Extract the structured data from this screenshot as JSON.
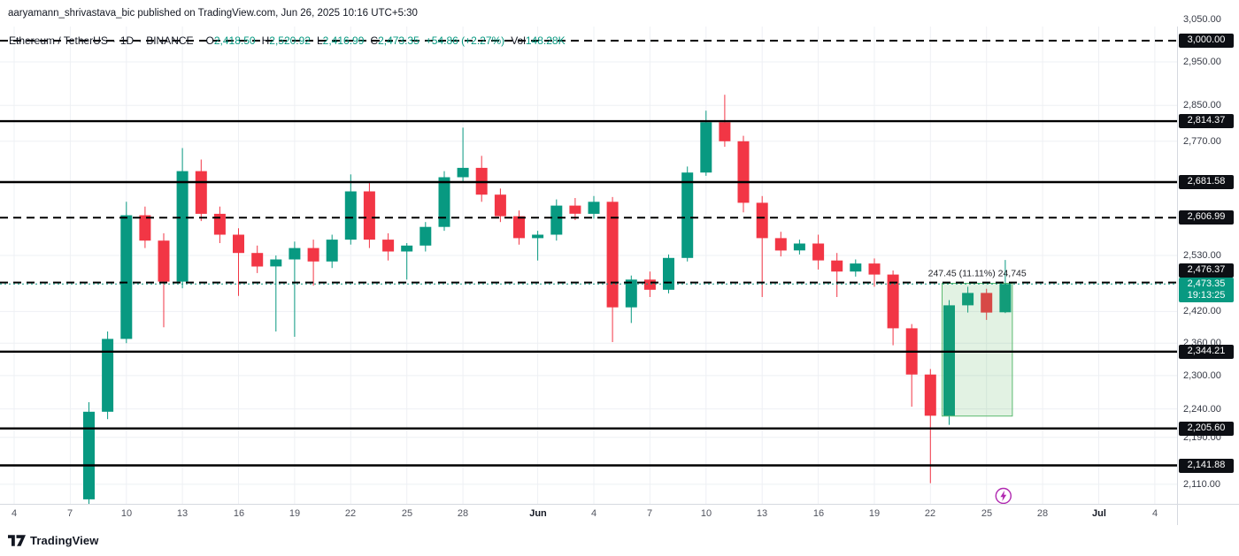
{
  "publish_bar": {
    "text": "aaryamann_shrivastava_bic published on TradingView.com, Jun 26, 2025 10:16 UTC+5:30"
  },
  "legend": {
    "symbol": "Ethereum / TetherUS",
    "dot": "·",
    "interval": "1D",
    "exchange": "BINANCE",
    "o_label": "O",
    "o": "2,418.50",
    "h_label": "H",
    "h": "2,520.92",
    "l_label": "L",
    "l": "2,416.99",
    "c_label": "C",
    "c": "2,473.35",
    "change": "+54.86 (+2.27%)",
    "vol_label": "Vol",
    "vol": "148.28K"
  },
  "footer": {
    "brand": "TradingView"
  },
  "chart_data": {
    "type": "candlestick",
    "title": "Ethereum / TetherUS · 1D · BINANCE",
    "price_scale": "log",
    "legend_ohlc": {
      "open": 2418.5,
      "high": 2520.92,
      "low": 2416.99,
      "close": 2473.35,
      "change": "+54.86 (+2.27%)",
      "volume": "148.28K"
    },
    "colors": {
      "up": "#089981",
      "down": "#f23645",
      "line": "#000000",
      "grid": "#eef0f4",
      "measure_fill": "rgba(76,175,80,0.16)",
      "measure_stroke": "#5bba6f",
      "marker": "#b028b0",
      "accent": "#089981"
    },
    "y_axis_ticks": [
      {
        "label": "3,050.00",
        "price": 3050
      },
      {
        "label": "2,950.00",
        "price": 2950
      },
      {
        "label": "2,850.00",
        "price": 2850
      },
      {
        "label": "2,770.00",
        "price": 2770
      },
      {
        "label": "2,530.00",
        "price": 2530
      },
      {
        "label": "2,420.00",
        "price": 2420
      },
      {
        "label": "2,360.00",
        "price": 2360
      },
      {
        "label": "2,300.00",
        "price": 2300
      },
      {
        "label": "2,240.00",
        "price": 2240
      },
      {
        "label": "2,190.00",
        "price": 2190
      },
      {
        "label": "2,110.00",
        "price": 2110
      }
    ],
    "price_lines": [
      {
        "label": "3,000.00",
        "price": 3000,
        "style": "dashed"
      },
      {
        "label": "2,814.37",
        "price": 2814.37,
        "style": "solid"
      },
      {
        "label": "2,681.58",
        "price": 2681.58,
        "style": "solid"
      },
      {
        "label": "2,606.99",
        "price": 2606.99,
        "style": "dashed"
      },
      {
        "label": "2,476.37",
        "price": 2476.37,
        "style": "dashed"
      },
      {
        "label": "2,344.21",
        "price": 2344.21,
        "style": "solid"
      },
      {
        "label": "2,205.60",
        "price": 2205.6,
        "style": "solid"
      },
      {
        "label": "2,141.88",
        "price": 2141.88,
        "style": "solid"
      }
    ],
    "current_price": {
      "label": "2,473.35",
      "price": 2473.35,
      "countdown": "19:13:25"
    },
    "x_axis_ticks": [
      {
        "label": "4",
        "day_index": -4
      },
      {
        "label": "7",
        "day_index": -1
      },
      {
        "label": "10",
        "day_index": 2
      },
      {
        "label": "13",
        "day_index": 5
      },
      {
        "label": "16",
        "day_index": 8
      },
      {
        "label": "19",
        "day_index": 11
      },
      {
        "label": "22",
        "day_index": 14
      },
      {
        "label": "25",
        "day_index": 17
      },
      {
        "label": "28",
        "day_index": 20
      },
      {
        "label": "Jun",
        "day_index": 24,
        "bold": true
      },
      {
        "label": "4",
        "day_index": 27
      },
      {
        "label": "7",
        "day_index": 30
      },
      {
        "label": "10",
        "day_index": 33
      },
      {
        "label": "13",
        "day_index": 36
      },
      {
        "label": "16",
        "day_index": 39
      },
      {
        "label": "19",
        "day_index": 42
      },
      {
        "label": "22",
        "day_index": 45
      },
      {
        "label": "25",
        "day_index": 48
      },
      {
        "label": "28",
        "day_index": 51
      },
      {
        "label": "Jul",
        "day_index": 54,
        "bold": true
      },
      {
        "label": "4",
        "day_index": 57
      }
    ],
    "candles": [
      [
        2085,
        2252,
        2065,
        2235
      ],
      [
        2235,
        2382,
        2222,
        2368
      ],
      [
        2368,
        2640,
        2360,
        2612
      ],
      [
        2612,
        2630,
        2545,
        2560
      ],
      [
        2560,
        2575,
        2390,
        2478
      ],
      [
        2478,
        2755,
        2465,
        2705
      ],
      [
        2705,
        2730,
        2600,
        2615
      ],
      [
        2615,
        2630,
        2555,
        2572
      ],
      [
        2572,
        2585,
        2450,
        2535
      ],
      [
        2535,
        2550,
        2495,
        2508
      ],
      [
        2508,
        2530,
        2382,
        2522
      ],
      [
        2522,
        2558,
        2372,
        2545
      ],
      [
        2545,
        2562,
        2470,
        2518
      ],
      [
        2518,
        2572,
        2505,
        2562
      ],
      [
        2562,
        2698,
        2552,
        2662
      ],
      [
        2662,
        2682,
        2545,
        2562
      ],
      [
        2562,
        2575,
        2520,
        2538
      ],
      [
        2538,
        2555,
        2482,
        2550
      ],
      [
        2550,
        2598,
        2538,
        2588
      ],
      [
        2588,
        2705,
        2580,
        2692
      ],
      [
        2692,
        2800,
        2680,
        2712
      ],
      [
        2712,
        2738,
        2640,
        2655
      ],
      [
        2655,
        2668,
        2598,
        2610
      ],
      [
        2610,
        2622,
        2552,
        2565
      ],
      [
        2565,
        2580,
        2520,
        2572
      ],
      [
        2572,
        2645,
        2560,
        2632
      ],
      [
        2632,
        2648,
        2602,
        2615
      ],
      [
        2615,
        2652,
        2605,
        2640
      ],
      [
        2640,
        2650,
        2362,
        2428
      ],
      [
        2428,
        2490,
        2398,
        2482
      ],
      [
        2482,
        2498,
        2448,
        2462
      ],
      [
        2462,
        2532,
        2455,
        2525
      ],
      [
        2525,
        2715,
        2518,
        2702
      ],
      [
        2702,
        2838,
        2695,
        2812
      ],
      [
        2812,
        2874,
        2758,
        2770
      ],
      [
        2770,
        2782,
        2618,
        2638
      ],
      [
        2638,
        2652,
        2448,
        2565
      ],
      [
        2565,
        2578,
        2528,
        2540
      ],
      [
        2540,
        2562,
        2532,
        2554
      ],
      [
        2554,
        2572,
        2502,
        2520
      ],
      [
        2520,
        2535,
        2448,
        2498
      ],
      [
        2498,
        2522,
        2488,
        2514
      ],
      [
        2514,
        2524,
        2468,
        2492
      ],
      [
        2492,
        2500,
        2356,
        2388
      ],
      [
        2388,
        2396,
        2244,
        2302
      ],
      [
        2302,
        2312,
        2112,
        2228
      ],
      [
        2228,
        2442,
        2212,
        2432
      ],
      [
        2432,
        2468,
        2418,
        2456
      ],
      [
        2456,
        2464,
        2404,
        2418
      ],
      [
        2418.5,
        2520.92,
        2416.99,
        2473.35
      ]
    ],
    "measurement": {
      "label": "247.45 (11.11%) 24,745",
      "from_day_index": 46,
      "to_day_index": 49,
      "price_low": 2227.3,
      "price_high": 2474.75
    },
    "marker": {
      "name": "flash",
      "day_index": 48.9,
      "price": 2090
    }
  }
}
